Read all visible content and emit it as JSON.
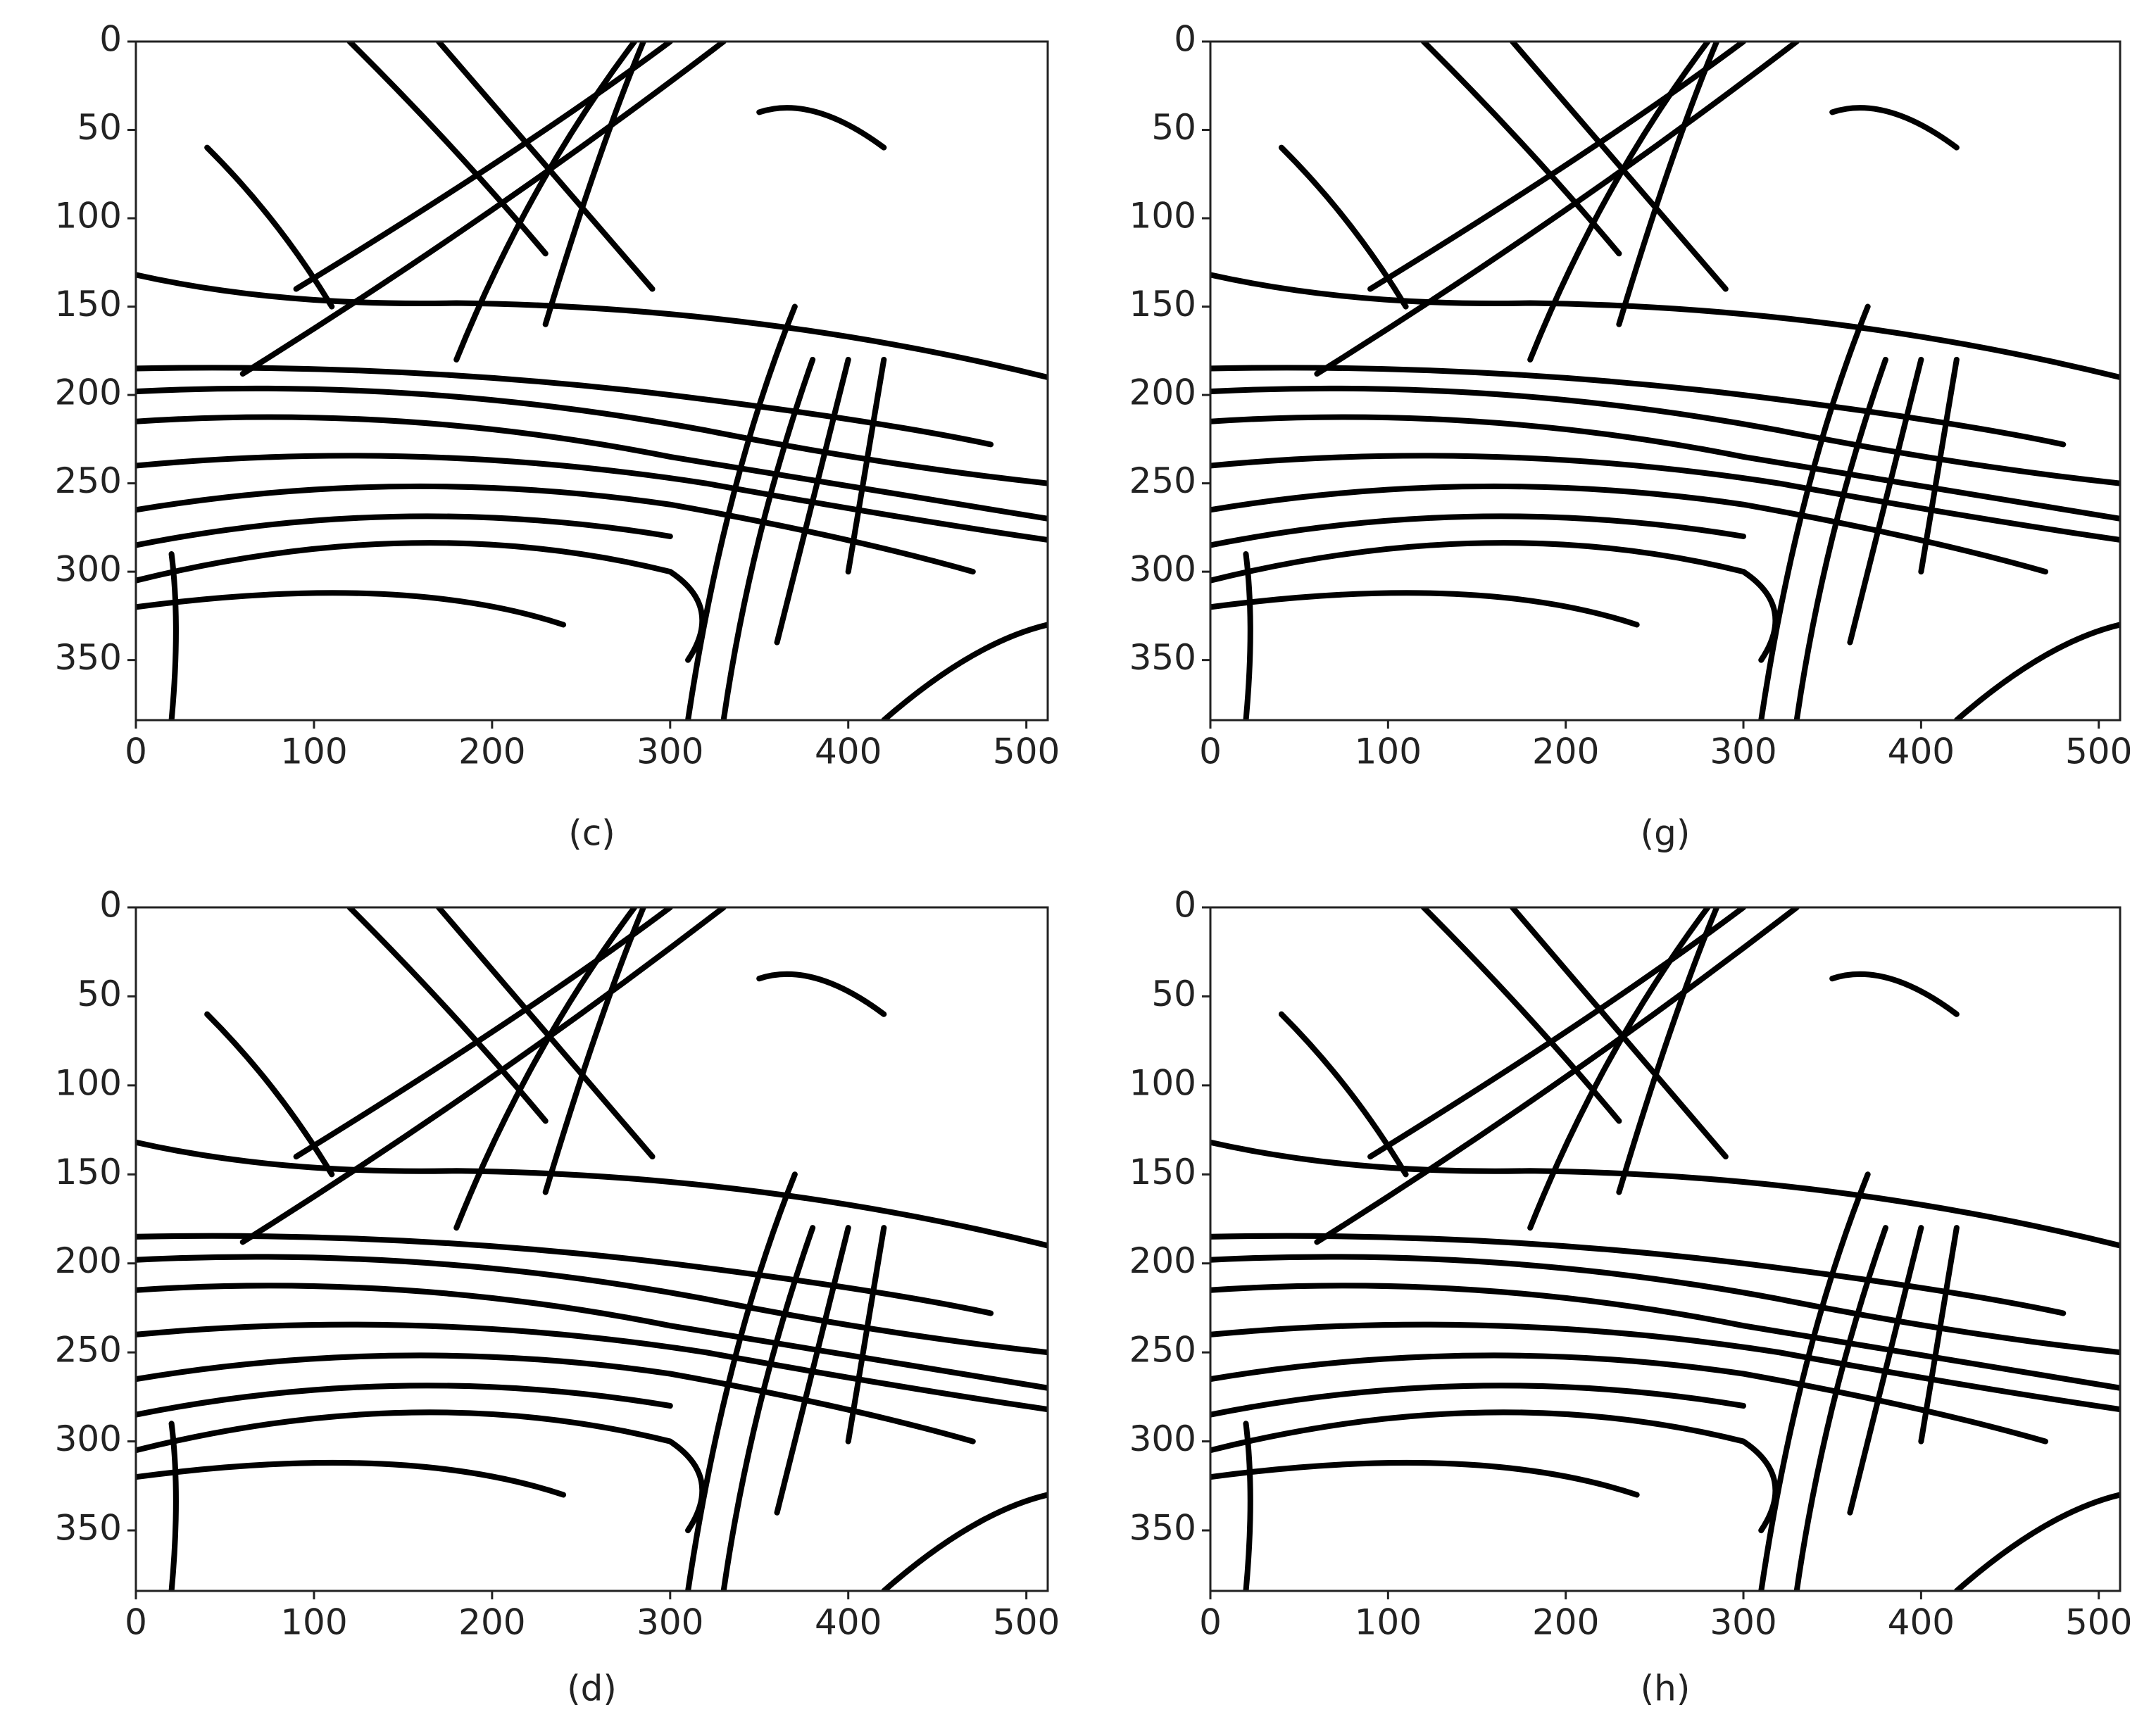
{
  "chart_data": [
    {
      "type": "image",
      "caption": "(c)",
      "xlim": [
        0,
        512
      ],
      "ylim": [
        0,
        384
      ],
      "xticks": [
        0,
        100,
        200,
        300,
        400,
        500
      ],
      "yticks": [
        0,
        50,
        100,
        150,
        200,
        250,
        300,
        350
      ]
    },
    {
      "type": "image",
      "caption": "(g)",
      "xlim": [
        0,
        512
      ],
      "ylim": [
        0,
        384
      ],
      "xticks": [
        0,
        100,
        200,
        300,
        400,
        500
      ],
      "yticks": [
        0,
        50,
        100,
        150,
        200,
        250,
        300,
        350
      ]
    },
    {
      "type": "image",
      "caption": "(d)",
      "xlim": [
        0,
        512
      ],
      "ylim": [
        0,
        384
      ],
      "xticks": [
        0,
        100,
        200,
        300,
        400,
        500
      ],
      "yticks": [
        0,
        50,
        100,
        150,
        200,
        250,
        300,
        350
      ]
    },
    {
      "type": "image",
      "caption": "(h)",
      "xlim": [
        0,
        512
      ],
      "ylim": [
        0,
        384
      ],
      "xticks": [
        0,
        100,
        200,
        300,
        400,
        500
      ],
      "yticks": [
        0,
        50,
        100,
        150,
        200,
        250,
        300,
        350
      ]
    }
  ]
}
